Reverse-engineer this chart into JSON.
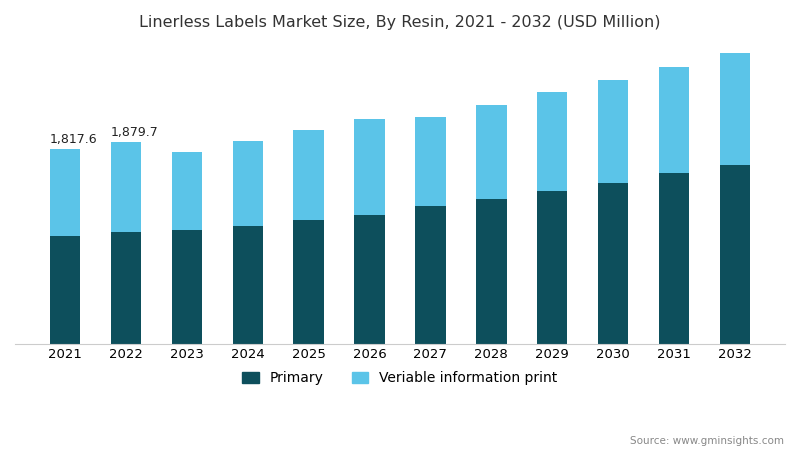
{
  "title": "Linerless Labels Market Size, By Resin, 2021 - 2032 (USD Million)",
  "years": [
    2021,
    2022,
    2023,
    2024,
    2025,
    2026,
    2027,
    2028,
    2029,
    2030,
    2031,
    2032
  ],
  "primary": [
    1000,
    1040,
    1060,
    1100,
    1150,
    1200,
    1280,
    1350,
    1420,
    1500,
    1590,
    1670
  ],
  "variable": [
    817.6,
    839.7,
    730,
    790,
    840,
    900,
    840,
    880,
    930,
    960,
    990,
    1040
  ],
  "annotations": {
    "2021": "1,817.6",
    "2022": "1,879.7"
  },
  "primary_color": "#0d4f5c",
  "variable_color": "#5bc4e8",
  "background_color": "#ffffff",
  "legend_primary": "Primary",
  "legend_variable": "Veriable information print",
  "source_text": "Source: www.gminsights.com",
  "title_fontsize": 11.5,
  "tick_fontsize": 9.5,
  "legend_fontsize": 10,
  "bar_width": 0.5,
  "ylim": [
    0,
    2800
  ]
}
